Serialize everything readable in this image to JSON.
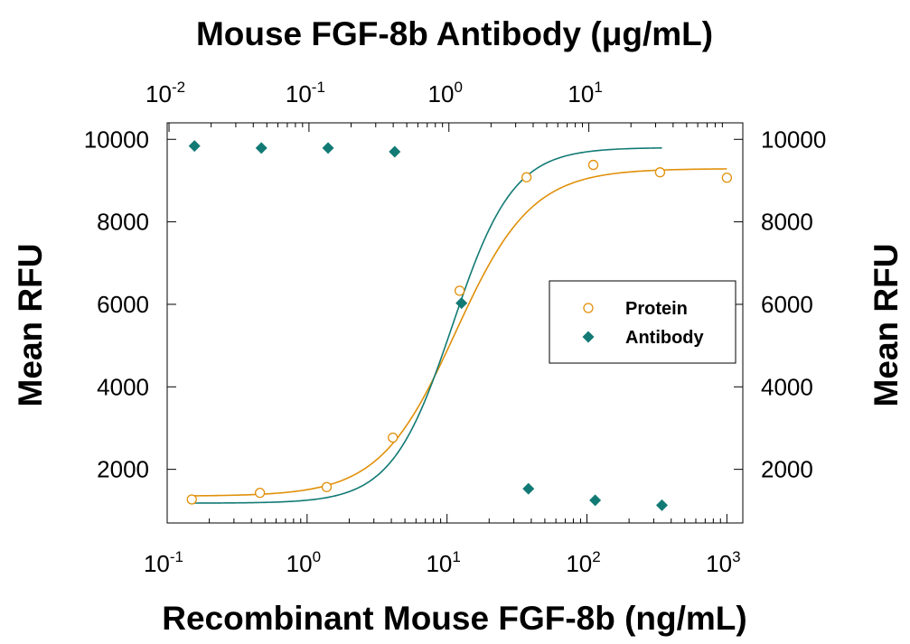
{
  "chart_data": {
    "type": "scatter",
    "title": "Mouse FGF-8b Antibody (μg/mL)",
    "xlabel": "Recombinant Mouse FGF-8b (ng/mL)",
    "ylabel": "Mean RFU",
    "y2label": "Mean RFU",
    "x_scale": "log",
    "x_lim": [
      0.1,
      1300
    ],
    "x_ticks": [
      {
        "value": 0.1,
        "base": "10",
        "exp": "-1"
      },
      {
        "value": 1,
        "base": "10",
        "exp": "0"
      },
      {
        "value": 10,
        "base": "10",
        "exp": "1"
      },
      {
        "value": 100,
        "base": "10",
        "exp": "2"
      },
      {
        "value": 1000,
        "base": "10",
        "exp": "3"
      }
    ],
    "x2_scale": "log",
    "x2_lim": [
      0.0097,
      126
    ],
    "x2_ticks": [
      {
        "value": 0.01,
        "base": "10",
        "exp": "-2"
      },
      {
        "value": 0.1,
        "base": "10",
        "exp": "-1"
      },
      {
        "value": 1,
        "base": "10",
        "exp": "0"
      },
      {
        "value": 10,
        "base": "10",
        "exp": "1"
      }
    ],
    "y_lim": [
      700,
      10400
    ],
    "y_ticks": [
      "2000",
      "4000",
      "6000",
      "8000",
      "10000"
    ],
    "legend_position": "right",
    "series": [
      {
        "name": "Protein",
        "axis": "bottom",
        "marker": "open-circle",
        "color": "#e0900a",
        "x": [
          0.15,
          0.46,
          1.38,
          4.1,
          12.3,
          37,
          111,
          333,
          1000
        ],
        "y": [
          1270,
          1430,
          1570,
          2770,
          6330,
          9080,
          9380,
          9200,
          9070
        ],
        "fit": {
          "bottom": 1350,
          "top": 9290,
          "ec50": 11.5,
          "hill": 1.6
        }
      },
      {
        "name": "Antibody",
        "axis": "top",
        "marker": "filled-diamond",
        "color": "#127a74",
        "x": [
          0.0152,
          0.0457,
          0.137,
          0.41,
          1.23,
          3.7,
          11.1,
          33.3
        ],
        "y": [
          9840,
          9790,
          9790,
          9700,
          6030,
          1530,
          1250,
          1130
        ],
        "fit": {
          "bottom": 1180,
          "top": 9800,
          "ec50": 1.06,
          "hill": 2.0
        }
      }
    ]
  }
}
